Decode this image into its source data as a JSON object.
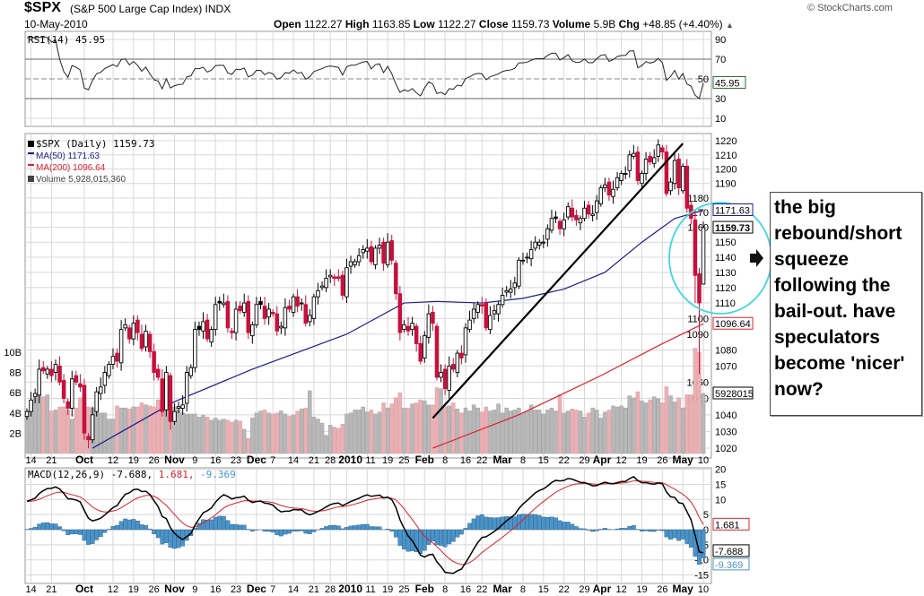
{
  "header": {
    "symbol": "$SPX",
    "name": "(S&P 500 Large Cap Index) INDX",
    "date": "10-May-2010",
    "copyright": "© StockCharts.com",
    "open_label": "Open",
    "open": "1122.27",
    "high_label": "High",
    "high": "1163.85",
    "low_label": "Low",
    "low": "1122.27",
    "close_label": "Close",
    "close": "1159.73",
    "volume_label": "Volume",
    "volume": "5.9B",
    "chg_label": "Chg",
    "chg": "+48.85 (+4.40%)",
    "chg_icon": "triangle-up"
  },
  "annotation": {
    "text": "the big rebound/short squeeze following the bail-out. have speculators become 'nicer' now?",
    "arrow_icon": "arrow-right"
  },
  "colors": {
    "up": "#000000",
    "down": "#c8103c",
    "ma50": "#1c1c8c",
    "ma200": "#e0202a",
    "vol_up": "#b8b8b8",
    "vol_down": "#eab0b4",
    "hist": "#4b93c8",
    "signal": "#e0202a",
    "circle": "#40d8e0",
    "grid": "#d8d8d8"
  },
  "chart_data": [
    {
      "type": "line",
      "panel": "rsi",
      "title": "RSI(14) 45.95",
      "last_value_label": "45.95",
      "yticks": [
        10,
        30,
        50,
        70,
        90
      ],
      "ylim": [
        0,
        100
      ],
      "overbought": 70,
      "oversold": 30
    },
    {
      "type": "candlestick",
      "panel": "price",
      "legend": [
        "$SPX (Daily) 1159.73",
        "MA(50) 1171.63",
        "MA(200) 1096.64",
        "Volume 5,928,015,360"
      ],
      "ylim": [
        1015,
        1225
      ],
      "scale": "log",
      "yticks": [
        1020,
        1030,
        1040,
        1050,
        1060,
        1070,
        1080,
        1090,
        1100,
        1110,
        1120,
        1130,
        1140,
        1150,
        1160,
        1170,
        1180,
        1190,
        1200,
        1210,
        1220
      ],
      "volume_ticks": [
        "2B",
        "4B",
        "6B",
        "8B",
        "10B"
      ],
      "volume_tick_values": [
        2,
        4,
        6,
        8,
        10
      ],
      "tags": {
        "ma50": "1171.63",
        "close": "1159.73",
        "ma200": "1096.64",
        "volume": "5928015"
      },
      "tag_values": {
        "ma50": 1171.63,
        "close": 1159.73,
        "ma200": 1096.64,
        "volume_b": 5.93
      },
      "last_open": 1122.27,
      "last_high": 1163.85,
      "last_low": 1122.27,
      "closes": [
        1042,
        1049,
        1053,
        1068,
        1067,
        1068,
        1064,
        1071,
        1060,
        1050,
        1044,
        1062,
        1060,
        1057,
        1029,
        1025,
        1040,
        1054,
        1057,
        1066,
        1071,
        1076,
        1073,
        1093,
        1096,
        1087,
        1097,
        1091,
        1081,
        1092,
        1079,
        1066,
        1063,
        1042,
        1066,
        1036,
        1042,
        1045,
        1046,
        1066,
        1069,
        1093,
        1093,
        1098,
        1087,
        1093,
        1109,
        1110,
        1110,
        1094,
        1091,
        1106,
        1105,
        1110,
        1091,
        1096,
        1109,
        1109,
        1100,
        1106,
        1103,
        1092,
        1095,
        1107,
        1106,
        1114,
        1108,
        1110,
        1097,
        1102,
        1114,
        1118,
        1121,
        1126,
        1128,
        1127,
        1126,
        1115,
        1133,
        1137,
        1137,
        1141,
        1145,
        1146,
        1137,
        1146,
        1148,
        1136,
        1150,
        1138,
        1116,
        1091,
        1096,
        1092,
        1097,
        1084,
        1073,
        1089,
        1103,
        1097,
        1063,
        1066,
        1056,
        1070,
        1068,
        1078,
        1075,
        1094,
        1099,
        1106,
        1109,
        1108,
        1094,
        1102,
        1105,
        1109,
        1115,
        1118,
        1119,
        1123,
        1138,
        1138,
        1140,
        1145,
        1150,
        1150,
        1150,
        1159,
        1166,
        1166,
        1159,
        1165,
        1174,
        1167,
        1165,
        1166,
        1173,
        1169,
        1169,
        1178,
        1187,
        1189,
        1182,
        1186,
        1194,
        1197,
        1197,
        1210,
        1211,
        1192,
        1197,
        1207,
        1205,
        1208,
        1217,
        1212,
        1183,
        1191,
        1206,
        1187,
        1202,
        1173,
        1166,
        1128,
        1110,
        1159.73
      ],
      "volumes_b": [
        4.2,
        5.2,
        5.5,
        6.2,
        5.6,
        5.8,
        4.2,
        4.3,
        4.6,
        4.6,
        4.3,
        3.4,
        4.5,
        5.5,
        5.8,
        4.6,
        4.5,
        4.2,
        4.0,
        4.0,
        3.4,
        3.4,
        4.7,
        4.5,
        4.5,
        4.4,
        4.6,
        4.6,
        5.0,
        4.8,
        4.7,
        4.6,
        5.3,
        5.2,
        5.0,
        6.3,
        4.6,
        4.3,
        4.0,
        3.9,
        3.9,
        3.9,
        3.6,
        3.8,
        3.6,
        3.3,
        3.5,
        3.3,
        3.4,
        3.3,
        3.1,
        3.3,
        3.2,
        2.4,
        1.5,
        3.5,
        4.0,
        4.2,
        4.3,
        4.0,
        3.9,
        4.0,
        4.2,
        3.9,
        3.7,
        3.8,
        4.2,
        4.4,
        4.5,
        6.2,
        3.6,
        3.4,
        3.0,
        1.8,
        2.8,
        2.6,
        2.5,
        2.9,
        3.9,
        4.0,
        4.3,
        4.3,
        4.6,
        4.1,
        4.3,
        3.9,
        4.1,
        5.0,
        4.5,
        4.9,
        5.5,
        6.0,
        4.5,
        4.5,
        4.9,
        5.0,
        5.3,
        5.2,
        4.8,
        4.8,
        6.5,
        6.4,
        4.6,
        4.7,
        5.0,
        4.4,
        4.0,
        4.5,
        4.2,
        4.8,
        4.5,
        4.1,
        4.6,
        4.2,
        4.3,
        4.9,
        4.0,
        4.5,
        4.2,
        4.3,
        4.5,
        4.0,
        4.2,
        4.8,
        4.3,
        4.3,
        3.9,
        4.3,
        4.5,
        4.2,
        5.8,
        4.0,
        4.2,
        4.4,
        4.3,
        4.2,
        3.6,
        4.0,
        4.5,
        4.3,
        3.5,
        4.1,
        4.3,
        4.7,
        4.6,
        4.7,
        4.5,
        5.7,
        5.5,
        6.1,
        5.2,
        5.0,
        5.3,
        5.6,
        5.4,
        5.0,
        6.6,
        5.7,
        5.1,
        5.5,
        4.5,
        5.8,
        5.8,
        10.4,
        10.0,
        5.93
      ],
      "ma200_points": [
        [
          99,
          1020
        ],
        [
          120,
          1040
        ],
        [
          140,
          1064
        ],
        [
          155,
          1084
        ],
        [
          165,
          1096.64
        ]
      ],
      "ma50_points": [
        [
          16,
          1020
        ],
        [
          36,
          1048
        ],
        [
          55,
          1068
        ],
        [
          78,
          1090
        ],
        [
          92,
          1110
        ],
        [
          100,
          1111
        ],
        [
          111,
          1110
        ],
        [
          121,
          1113
        ],
        [
          131,
          1119
        ],
        [
          141,
          1130
        ],
        [
          150,
          1150
        ],
        [
          158,
          1166
        ],
        [
          165,
          1171.63
        ]
      ]
    },
    {
      "type": "line",
      "panel": "macd",
      "title_main": "MACD(12,26,9) -7.688,",
      "title_signal": "1.681,",
      "title_hist": "-9.369",
      "yticks": [
        -15,
        -10,
        -5,
        0,
        5,
        10,
        15,
        20
      ],
      "ylim": [
        -17,
        21
      ],
      "tags": {
        "macd": "-7.688",
        "signal": "1.681",
        "hist": "-9.369"
      },
      "tag_values": {
        "macd": -7.688,
        "signal": 1.681,
        "hist": -9.369
      }
    }
  ],
  "xaxis": [
    {
      "label": "14",
      "i": 1
    },
    {
      "label": "21",
      "i": 6
    },
    {
      "label": "Oct",
      "i": 14,
      "bold": true
    },
    {
      "label": "12",
      "i": 21
    },
    {
      "label": "19",
      "i": 26
    },
    {
      "label": "26",
      "i": 31
    },
    {
      "label": "Nov",
      "i": 36,
      "bold": true
    },
    {
      "label": "9",
      "i": 41
    },
    {
      "label": "16",
      "i": 46
    },
    {
      "label": "23",
      "i": 51
    },
    {
      "label": "Dec",
      "i": 56,
      "bold": true
    },
    {
      "label": "7",
      "i": 60
    },
    {
      "label": "14",
      "i": 65
    },
    {
      "label": "21",
      "i": 70
    },
    {
      "label": "28",
      "i": 74
    },
    {
      "label": "2010",
      "i": 78,
      "bold": true
    },
    {
      "label": "11",
      "i": 83
    },
    {
      "label": "19",
      "i": 88
    },
    {
      "label": "25",
      "i": 92
    },
    {
      "label": "Feb",
      "i": 97,
      "bold": true
    },
    {
      "label": "8",
      "i": 102
    },
    {
      "label": "16",
      "i": 107
    },
    {
      "label": "22",
      "i": 111
    },
    {
      "label": "Mar",
      "i": 116,
      "bold": true
    },
    {
      "label": "8",
      "i": 121
    },
    {
      "label": "15",
      "i": 126
    },
    {
      "label": "22",
      "i": 131
    },
    {
      "label": "29",
      "i": 136
    },
    {
      "label": "Apr",
      "i": 139,
      "bold": true
    },
    {
      "label": "12",
      "i": 145
    },
    {
      "label": "19",
      "i": 150
    },
    {
      "label": "26",
      "i": 155
    },
    {
      "label": "May",
      "i": 160,
      "bold": true
    },
    {
      "label": "10",
      "i": 165
    }
  ],
  "trendline_points": [
    [
      99,
      1038
    ],
    [
      160,
      1218
    ]
  ]
}
